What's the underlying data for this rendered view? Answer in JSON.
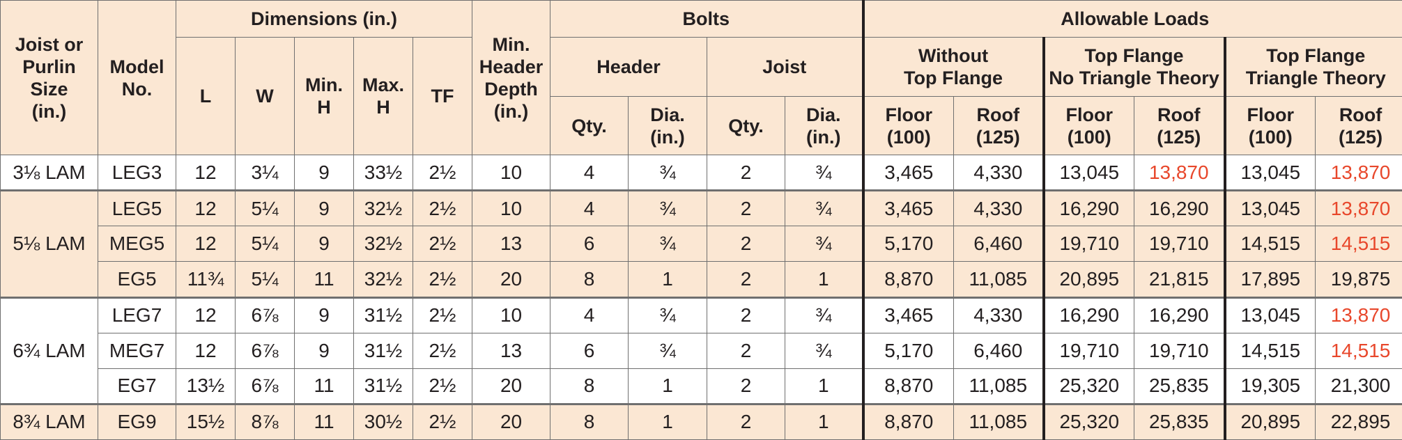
{
  "headers": {
    "joist": "Joist or\nPurlin\nSize\n(in.)",
    "model": "Model\nNo.",
    "dimensions": "Dimensions (in.)",
    "L": "L",
    "W": "W",
    "minH": "Min.\nH",
    "maxH": "Max.\nH",
    "TF": "TF",
    "minHeader": "Min.\nHeader\nDepth\n(in.)",
    "bolts": "Bolts",
    "header": "Header",
    "joistBolts": "Joist",
    "qty1": "Qty.",
    "dia1": "Dia.\n(in.)",
    "qty2": "Qty.",
    "dia2": "Dia.\n(in.)",
    "allowable": "Allowable Loads",
    "withoutTF": "Without\nTop Flange",
    "noTriangle": "Top Flange\nNo Triangle Theory",
    "triangle": "Top Flange\nTriangle Theory",
    "floor1": "Floor\n(100)",
    "roof1": "Roof\n(125)",
    "floor2": "Floor\n(100)",
    "roof2": "Roof\n(125)",
    "floor3": "Floor\n(100)",
    "roof3": "Roof\n(125)"
  },
  "groups": [
    {
      "size": "3⅛ LAM",
      "shade": "white",
      "rows": [
        {
          "model": "LEG3",
          "L": "12",
          "W": "3¼",
          "minH": "9",
          "maxH": "33½",
          "TF": "2½",
          "minHeader": "10",
          "hQty": "4",
          "hDia": "¾",
          "jQty": "2",
          "jDia": "¾",
          "f1": "3,465",
          "r1": "4,330",
          "f2": "13,045",
          "r2": "13,870",
          "f3": "13,045",
          "r3": "13,870",
          "r2red": true,
          "r3red": true
        }
      ]
    },
    {
      "size": "5⅛ LAM",
      "shade": "tan",
      "rows": [
        {
          "model": "LEG5",
          "L": "12",
          "W": "5¼",
          "minH": "9",
          "maxH": "32½",
          "TF": "2½",
          "minHeader": "10",
          "hQty": "4",
          "hDia": "¾",
          "jQty": "2",
          "jDia": "¾",
          "f1": "3,465",
          "r1": "4,330",
          "f2": "16,290",
          "r2": "16,290",
          "f3": "13,045",
          "r3": "13,870",
          "r2red": false,
          "r3red": true
        },
        {
          "model": "MEG5",
          "L": "12",
          "W": "5¼",
          "minH": "9",
          "maxH": "32½",
          "TF": "2½",
          "minHeader": "13",
          "hQty": "6",
          "hDia": "¾",
          "jQty": "2",
          "jDia": "¾",
          "f1": "5,170",
          "r1": "6,460",
          "f2": "19,710",
          "r2": "19,710",
          "f3": "14,515",
          "r3": "14,515",
          "r2red": false,
          "r3red": true
        },
        {
          "model": "EG5",
          "L": "11¾",
          "W": "5¼",
          "minH": "11",
          "maxH": "32½",
          "TF": "2½",
          "minHeader": "20",
          "hQty": "8",
          "hDia": "1",
          "jQty": "2",
          "jDia": "1",
          "f1": "8,870",
          "r1": "11,085",
          "f2": "20,895",
          "r2": "21,815",
          "f3": "17,895",
          "r3": "19,875",
          "r2red": false,
          "r3red": false
        }
      ]
    },
    {
      "size": "6¾ LAM",
      "shade": "white",
      "rows": [
        {
          "model": "LEG7",
          "L": "12",
          "W": "6⅞",
          "minH": "9",
          "maxH": "31½",
          "TF": "2½",
          "minHeader": "10",
          "hQty": "4",
          "hDia": "¾",
          "jQty": "2",
          "jDia": "¾",
          "f1": "3,465",
          "r1": "4,330",
          "f2": "16,290",
          "r2": "16,290",
          "f3": "13,045",
          "r3": "13,870",
          "r2red": false,
          "r3red": true
        },
        {
          "model": "MEG7",
          "L": "12",
          "W": "6⅞",
          "minH": "9",
          "maxH": "31½",
          "TF": "2½",
          "minHeader": "13",
          "hQty": "6",
          "hDia": "¾",
          "jQty": "2",
          "jDia": "¾",
          "f1": "5,170",
          "r1": "6,460",
          "f2": "19,710",
          "r2": "19,710",
          "f3": "14,515",
          "r3": "14,515",
          "r2red": false,
          "r3red": true
        },
        {
          "model": "EG7",
          "L": "13½",
          "W": "6⅞",
          "minH": "11",
          "maxH": "31½",
          "TF": "2½",
          "minHeader": "20",
          "hQty": "8",
          "hDia": "1",
          "jQty": "2",
          "jDia": "1",
          "f1": "8,870",
          "r1": "11,085",
          "f2": "25,320",
          "r2": "25,835",
          "f3": "19,305",
          "r3": "21,300",
          "r2red": false,
          "r3red": false
        }
      ]
    },
    {
      "size": "8¾ LAM",
      "shade": "tan",
      "rows": [
        {
          "model": "EG9",
          "L": "15½",
          "W": "8⅞",
          "minH": "11",
          "maxH": "30½",
          "TF": "2½",
          "minHeader": "20",
          "hQty": "8",
          "hDia": "1",
          "jQty": "2",
          "jDia": "1",
          "f1": "8,870",
          "r1": "11,085",
          "f2": "25,320",
          "r2": "25,835",
          "f3": "20,895",
          "r3": "22,895",
          "r2red": false,
          "r3red": false
        }
      ]
    }
  ],
  "colors": {
    "headerBg": "#fbe7d3",
    "tanRow": "#fbe7d3",
    "whiteRow": "#ffffff",
    "red": "#e8472b",
    "text": "#231f20"
  }
}
